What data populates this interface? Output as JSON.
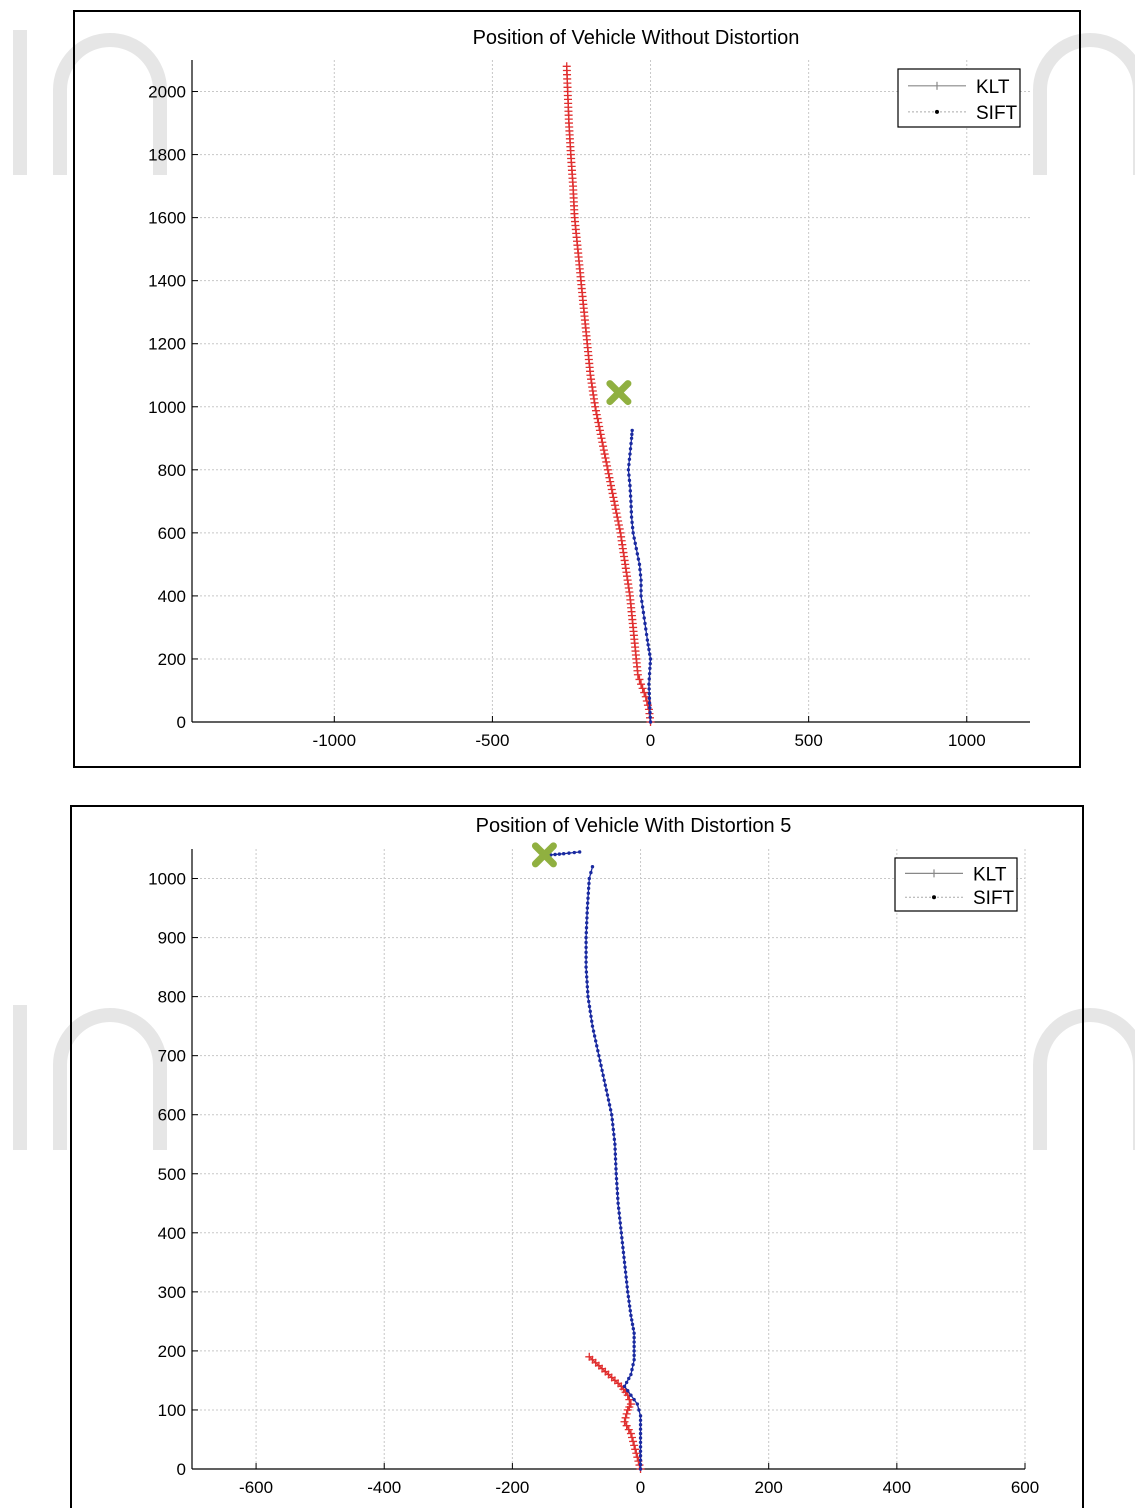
{
  "chart_data": [
    {
      "type": "line",
      "title": "Position of Vehicle Without Distortion",
      "xlim": [
        -1450,
        1200
      ],
      "ylim": [
        0,
        2100
      ],
      "xticks": [
        -1000,
        -500,
        0,
        500,
        1000
      ],
      "yticks": [
        0,
        200,
        400,
        600,
        800,
        1000,
        1200,
        1400,
        1600,
        1800,
        2000
      ],
      "xtick_labels": [
        "-1000",
        "-500",
        "0",
        "500",
        "1000"
      ],
      "ytick_labels": [
        "0",
        "200",
        "400",
        "600",
        "800",
        "1000",
        "1200",
        "1400",
        "1600",
        "1800",
        "2000"
      ],
      "grid": true,
      "legend_position": "top-right",
      "legend": [
        "KLT",
        "SIFT"
      ],
      "series": [
        {
          "name": "KLT",
          "color": "#e03030",
          "marker": "+",
          "points": [
            [
              0,
              0
            ],
            [
              -5,
              40
            ],
            [
              -15,
              80
            ],
            [
              -30,
              120
            ],
            [
              -40,
              150
            ],
            [
              -45,
              200
            ],
            [
              -55,
              300
            ],
            [
              -65,
              400
            ],
            [
              -80,
              500
            ],
            [
              -95,
              600
            ],
            [
              -115,
              700
            ],
            [
              -135,
              800
            ],
            [
              -155,
              900
            ],
            [
              -175,
              1000
            ],
            [
              -190,
              1100
            ],
            [
              -200,
              1200
            ],
            [
              -210,
              1300
            ],
            [
              -220,
              1400
            ],
            [
              -230,
              1500
            ],
            [
              -240,
              1600
            ],
            [
              -245,
              1700
            ],
            [
              -252,
              1800
            ],
            [
              -258,
              1900
            ],
            [
              -262,
              2000
            ],
            [
              -265,
              2080
            ]
          ]
        },
        {
          "name": "SIFT",
          "color": "#1a2aa0",
          "marker": ".",
          "points": [
            [
              0,
              0
            ],
            [
              -3,
              60
            ],
            [
              -5,
              120
            ],
            [
              -2,
              170
            ],
            [
              0,
              200
            ],
            [
              -10,
              260
            ],
            [
              -20,
              330
            ],
            [
              -30,
              400
            ],
            [
              -30,
              450
            ],
            [
              -35,
              500
            ],
            [
              -45,
              550
            ],
            [
              -55,
              600
            ],
            [
              -60,
              650
            ],
            [
              -62,
              700
            ],
            [
              -65,
              750
            ],
            [
              -70,
              800
            ],
            [
              -65,
              850
            ],
            [
              -60,
              900
            ],
            [
              -58,
              925
            ]
          ]
        }
      ],
      "annotations": [
        {
          "symbol": "x-marker",
          "color": "#90b040",
          "x": -100,
          "y": 1045
        }
      ]
    },
    {
      "type": "line",
      "title": "Position of Vehicle With Distortion 5",
      "xlim": [
        -700,
        600
      ],
      "ylim": [
        0,
        1050
      ],
      "xticks": [
        -600,
        -400,
        -200,
        0,
        200,
        400,
        600
      ],
      "yticks": [
        0,
        100,
        200,
        300,
        400,
        500,
        600,
        700,
        800,
        900,
        1000
      ],
      "xtick_labels": [
        "-600",
        "-400",
        "-200",
        "0",
        "200",
        "400",
        "600"
      ],
      "ytick_labels": [
        "0",
        "100",
        "200",
        "300",
        "400",
        "500",
        "600",
        "700",
        "800",
        "900",
        "1000"
      ],
      "grid": true,
      "legend_position": "top-right",
      "legend": [
        "KLT",
        "SIFT"
      ],
      "series": [
        {
          "name": "KLT",
          "color": "#e03030",
          "marker": "+",
          "points": [
            [
              0,
              0
            ],
            [
              -5,
              20
            ],
            [
              -10,
              40
            ],
            [
              -15,
              60
            ],
            [
              -25,
              80
            ],
            [
              -20,
              100
            ],
            [
              -15,
              110
            ],
            [
              -20,
              125
            ],
            [
              -30,
              140
            ],
            [
              -45,
              155
            ],
            [
              -60,
              170
            ],
            [
              -75,
              185
            ],
            [
              -80,
              190
            ]
          ]
        },
        {
          "name": "SIFT",
          "color": "#1a2aa0",
          "marker": ".",
          "points": [
            [
              0,
              0
            ],
            [
              0,
              30
            ],
            [
              0,
              60
            ],
            [
              0,
              90
            ],
            [
              -5,
              110
            ],
            [
              -15,
              125
            ],
            [
              -25,
              140
            ],
            [
              -15,
              160
            ],
            [
              -10,
              185
            ],
            [
              -10,
              200
            ],
            [
              -10,
              230
            ],
            [
              -15,
              260
            ],
            [
              -20,
              300
            ],
            [
              -25,
              350
            ],
            [
              -30,
              400
            ],
            [
              -35,
              450
            ],
            [
              -38,
              500
            ],
            [
              -40,
              550
            ],
            [
              -45,
              600
            ],
            [
              -55,
              650
            ],
            [
              -65,
              700
            ],
            [
              -75,
              750
            ],
            [
              -82,
              800
            ],
            [
              -85,
              850
            ],
            [
              -85,
              900
            ],
            [
              -83,
              950
            ],
            [
              -80,
              1000
            ],
            [
              -75,
              1020
            ]
          ]
        },
        {
          "name": "",
          "color": "#1a2aa0",
          "marker": ".",
          "points": [
            [
              -95,
              1045
            ],
            [
              -120,
              1042
            ],
            [
              -140,
              1040
            ]
          ]
        }
      ],
      "annotations": [
        {
          "symbol": "x-marker",
          "color": "#90b040",
          "x": -150,
          "y": 1040
        }
      ]
    }
  ]
}
